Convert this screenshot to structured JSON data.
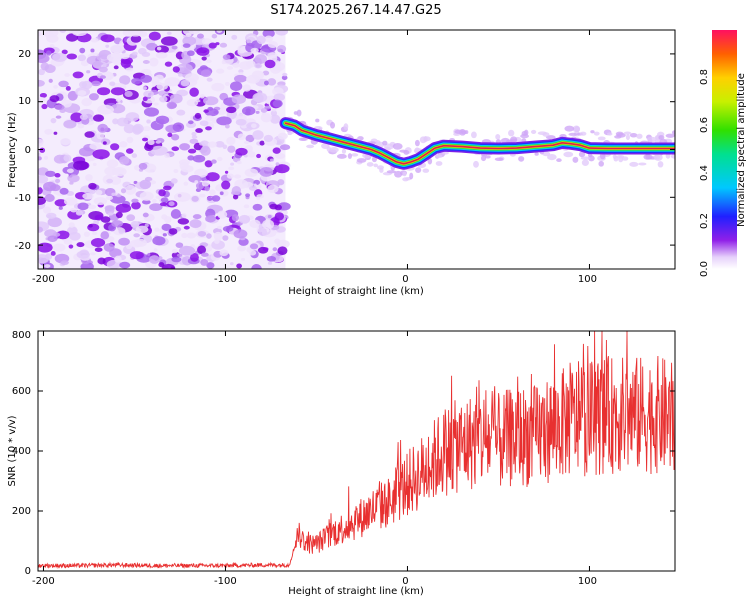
{
  "title": "S174.2025.267.14.47.G25",
  "colors": {
    "line": "#e83030",
    "ridge_core": "#e0204a",
    "noise_dark": "#8a10e8",
    "noise_light": "#d8b8f8"
  },
  "chart_data": [
    {
      "type": "heatmap",
      "xlabel": "Height of straight line (km)",
      "ylabel": "Frequency (Hz)",
      "xlim": [
        -203,
        147
      ],
      "ylim": [
        -25,
        25
      ],
      "xticks": [
        -200,
        -100,
        0,
        100
      ],
      "yticks": [
        -20,
        -10,
        0,
        10,
        20
      ],
      "xtick_labels": [
        "-200",
        "-100",
        "0",
        "100"
      ],
      "ytick_labels": [
        "-20",
        "-10",
        "0",
        "10",
        "20"
      ],
      "noise_region_x": [
        -203,
        -67
      ],
      "ridge": {
        "x": [
          -67,
          -62,
          -58,
          -54,
          -50,
          -45,
          -40,
          -35,
          -30,
          -25,
          -20,
          -15,
          -10,
          -6,
          -2,
          2,
          6,
          10,
          15,
          20,
          30,
          40,
          50,
          60,
          70,
          80,
          85,
          90,
          95,
          100,
          110,
          120,
          130,
          140,
          147
        ],
        "y": [
          5.5,
          5.0,
          4.0,
          3.5,
          3.0,
          2.5,
          2.0,
          1.5,
          1.0,
          0.5,
          0.0,
          -0.8,
          -1.8,
          -2.6,
          -3.0,
          -2.6,
          -2.0,
          -1.0,
          0.3,
          0.8,
          0.6,
          0.3,
          0.2,
          0.3,
          0.6,
          0.9,
          1.4,
          1.2,
          0.9,
          0.3,
          0.2,
          0.2,
          0.2,
          0.2,
          0.2
        ]
      },
      "colorbar": {
        "label": "Normalized spectral amplitude",
        "range": [
          0,
          1
        ],
        "ticks": [
          0.0,
          0.2,
          0.4,
          0.6,
          0.8
        ],
        "tick_labels": [
          "0.0",
          "0.2",
          "0.4",
          "0.6",
          "0.8"
        ]
      }
    },
    {
      "type": "line",
      "xlabel": "Height of straight line (km)",
      "ylabel": "SNR (10 * v/v)",
      "xlim": [
        -203,
        147
      ],
      "ylim": [
        0,
        800
      ],
      "xticks": [
        -200,
        -100,
        0,
        100
      ],
      "yticks": [
        0,
        200,
        400,
        600,
        800
      ],
      "xtick_labels": [
        "-200",
        "-100",
        "0",
        "100"
      ],
      "ytick_labels": [
        "0",
        "200",
        "400",
        "600",
        "800"
      ],
      "series": [
        {
          "name": "SNR",
          "x": [
            -203,
            -180,
            -160,
            -140,
            -120,
            -100,
            -80,
            -65,
            -60,
            -55,
            -50,
            -40,
            -30,
            -20,
            -10,
            0,
            10,
            20,
            30,
            40,
            50,
            60,
            70,
            80,
            90,
            100,
            110,
            120,
            130,
            140,
            147
          ],
          "y": [
            18,
            18,
            20,
            18,
            18,
            18,
            20,
            20,
            120,
            90,
            90,
            130,
            160,
            200,
            230,
            290,
            340,
            400,
            420,
            440,
            430,
            450,
            450,
            480,
            500,
            510,
            520,
            520,
            520,
            520,
            500
          ]
        }
      ]
    }
  ]
}
